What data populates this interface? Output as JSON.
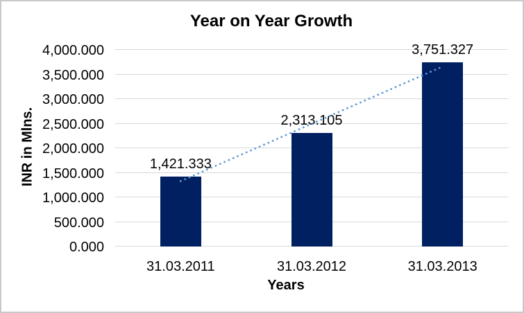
{
  "window": {
    "background_color": "#ffffff",
    "border_color": "#c9c9c9"
  },
  "chart_data": {
    "type": "bar",
    "title": "Year on Year Growth",
    "xlabel": "Years",
    "ylabel": "INR in Mlns.",
    "categories": [
      "31.03.2011",
      "31.03.2012",
      "31.03.2013"
    ],
    "values": [
      1421.333,
      2313.105,
      3751.327
    ],
    "value_labels": [
      "1,421.333",
      "2,313.105",
      "3,751.327"
    ],
    "ylim": [
      0,
      4000
    ],
    "ytick_values": [
      0,
      500,
      1000,
      1500,
      2000,
      2500,
      3000,
      3500,
      4000
    ],
    "ytick_labels": [
      "0.000",
      "500.000",
      "1,000.000",
      "1,500.000",
      "2,000.000",
      "2,500.000",
      "3,000.000",
      "3,500.000",
      "4,000.000"
    ],
    "grid": true,
    "legend": "none",
    "bar_color": "#002061",
    "gridline_color": "#d9d9d9",
    "axis_line_color": "#d9d9d9",
    "text_color": "#000000",
    "trendline": {
      "type": "linear",
      "style": "dotted",
      "color": "#5b9bd5",
      "fitted_values": [
        1330.26,
        2495.26,
        3660.25
      ]
    }
  }
}
